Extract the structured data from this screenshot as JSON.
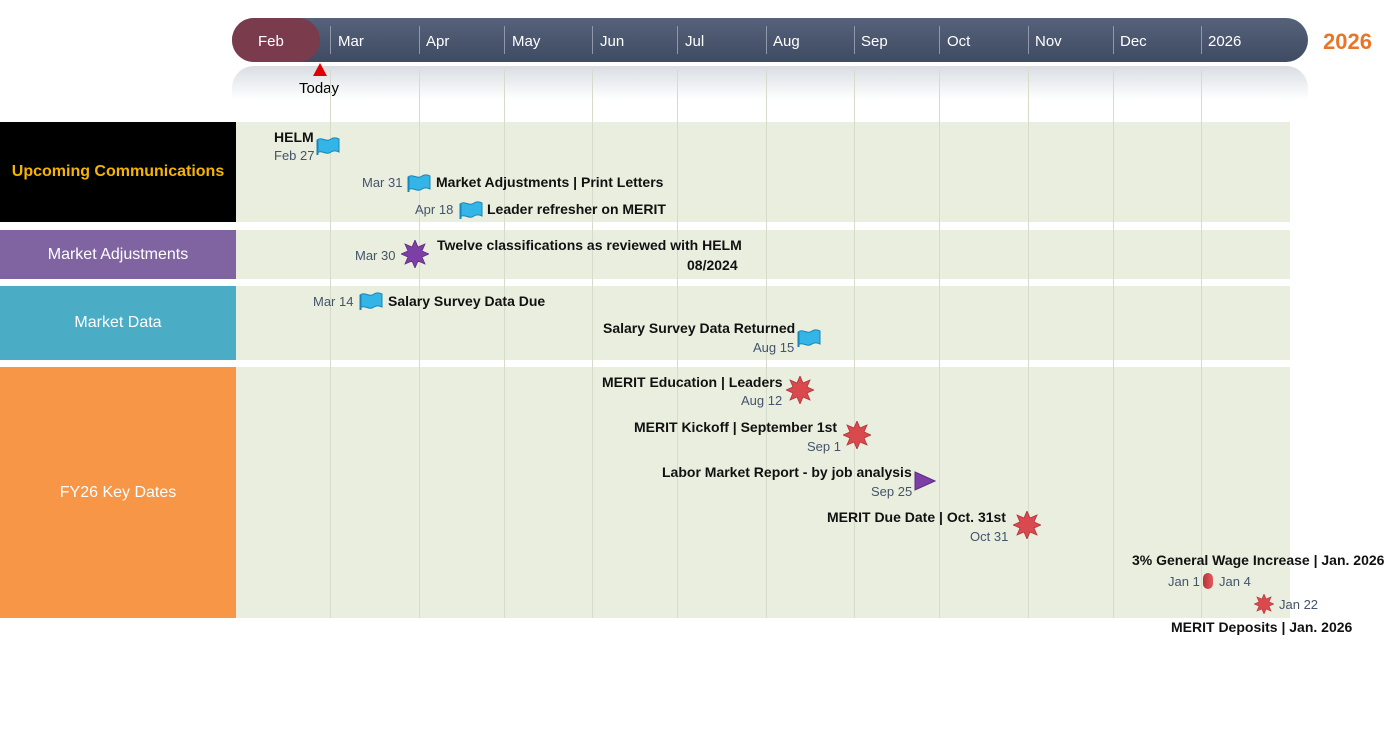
{
  "timescale": {
    "months": [
      "Feb",
      "Mar",
      "Apr",
      "May",
      "Jun",
      "Jul",
      "Aug",
      "Sep",
      "Oct",
      "Nov",
      "Dec",
      "2026"
    ],
    "year_label": "2026",
    "today_label": "Today"
  },
  "lanes": [
    {
      "label": "Upcoming Communications",
      "color": "#000000",
      "text_color": "#f5b400"
    },
    {
      "label": "Market Adjustments",
      "color": "#8064a2",
      "text_color": "#ffffff"
    },
    {
      "label": "Market Data",
      "color": "#4bacc6",
      "text_color": "#ffffff"
    },
    {
      "label": "FY26 Key Dates",
      "color": "#f79646",
      "text_color": "#ffffff"
    }
  ],
  "milestones": [
    {
      "title": "HELM",
      "date": "Feb 27",
      "shape": "flag-icon"
    },
    {
      "title": "Market Adjustments | Print Letters",
      "date": "Mar 31",
      "shape": "flag-icon"
    },
    {
      "title": "Leader refresher on MERIT",
      "date": "Apr 18",
      "shape": "flag-icon"
    },
    {
      "title": "Twelve classifications as reviewed with HELM",
      "title2": "08/2024",
      "date": "Mar 30",
      "shape": "star-icon"
    },
    {
      "title": "Salary Survey Data Due",
      "date": "Mar 14",
      "shape": "flag-icon"
    },
    {
      "title": "Salary Survey Data Returned",
      "date": "Aug 15",
      "shape": "flag-icon"
    },
    {
      "title": "MERIT Education | Leaders",
      "date": "Aug 12",
      "shape": "starburst-icon"
    },
    {
      "title": "MERIT Kickoff | September 1st",
      "date": "Sep 1",
      "shape": "starburst-icon"
    },
    {
      "title": "Labor Market Report - by job analysis",
      "date": "Sep 25",
      "shape": "triangle-icon"
    },
    {
      "title": "MERIT Due Date | Oct. 31st",
      "date": "Oct 31",
      "shape": "starburst-icon"
    },
    {
      "title": "3% General Wage Increase | Jan. 2026",
      "date": "Jan 1",
      "date2": "Jan 4",
      "shape": "capsule-icon"
    },
    {
      "title": "MERIT Deposits | Jan. 2026",
      "date": "Jan 22",
      "shape": "starburst-icon"
    }
  ],
  "colors": {
    "flag": "#33b5e8",
    "star": "#7b3fa6",
    "starburst": "#d9494d",
    "triangle": "#7b3fa6",
    "capsule": "#d9494d"
  }
}
